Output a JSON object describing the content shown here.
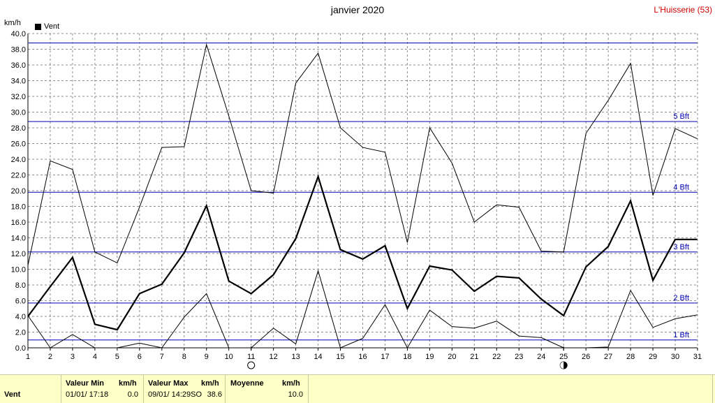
{
  "header": {
    "title": "janvier 2020",
    "station": "L'Huisserie (53)",
    "unit": "km/h",
    "legend_label": "Vent"
  },
  "chart_data": {
    "type": "line",
    "title": "janvier 2020",
    "ylabel": "km/h",
    "xlabel": "",
    "ylim": [
      0,
      40
    ],
    "y_ticks": [
      "0.0",
      "2.0",
      "4.0",
      "6.0",
      "8.0",
      "10.0",
      "12.0",
      "14.0",
      "16.0",
      "18.0",
      "20.0",
      "22.0",
      "24.0",
      "26.0",
      "28.0",
      "30.0",
      "32.0",
      "34.0",
      "36.0",
      "38.0",
      "40.0"
    ],
    "x": [
      1,
      2,
      3,
      4,
      5,
      6,
      7,
      8,
      9,
      10,
      11,
      12,
      13,
      14,
      15,
      16,
      17,
      18,
      19,
      20,
      21,
      22,
      23,
      24,
      25,
      26,
      27,
      28,
      29,
      30,
      31
    ],
    "grid": true,
    "legend": "top-left",
    "series": [
      {
        "name": "Vent",
        "color": "#000000",
        "values": [
          4.0,
          7.8,
          11.5,
          3.0,
          2.3,
          6.9,
          8.1,
          12.1,
          18.1,
          8.5,
          6.9,
          9.3,
          13.9,
          21.8,
          12.5,
          11.3,
          13.0,
          5.0,
          10.4,
          9.9,
          7.2,
          9.1,
          8.9,
          6.2,
          4.1,
          10.3,
          12.9,
          18.7,
          8.6,
          13.8,
          13.8
        ]
      },
      {
        "color": "#000000",
        "values": [
          10.5,
          23.8,
          22.7,
          12.2,
          10.8,
          17.9,
          25.5,
          25.6,
          38.6,
          29.5,
          20.0,
          19.7,
          33.7,
          37.5,
          28.0,
          25.5,
          24.9,
          13.4,
          28.0,
          23.5,
          16.0,
          18.2,
          17.9,
          12.3,
          12.2,
          27.3,
          31.5,
          36.2,
          19.4,
          27.9,
          26.6
        ]
      },
      {
        "color": "#000000",
        "values": [
          4.1,
          0.0,
          1.7,
          0.0,
          0.0,
          0.6,
          0.0,
          3.9,
          6.9,
          0.0,
          0.0,
          2.5,
          0.5,
          9.8,
          0.0,
          1.2,
          5.5,
          0.0,
          4.8,
          2.7,
          2.5,
          3.4,
          1.5,
          1.3,
          0.0,
          0.0,
          0.1,
          7.3,
          2.6,
          3.7,
          4.2
        ]
      }
    ],
    "beaufort_lines": [
      {
        "value": 1.0,
        "label": "1 Bft"
      },
      {
        "value": 5.7,
        "label": "2 Bft"
      },
      {
        "value": 12.2,
        "label": "3 Bft"
      },
      {
        "value": 19.8,
        "label": "4 Bft"
      },
      {
        "value": 28.8,
        "label": "5 Bft"
      },
      {
        "value": 38.8,
        "label": ""
      }
    ],
    "moon_phases": [
      {
        "day": 11,
        "phase": "full"
      },
      {
        "day": 25,
        "phase": "new"
      }
    ]
  },
  "footer": {
    "series_label": "Vent",
    "min_header": "Valeur Min",
    "min_unit": "km/h",
    "min_date": "01/01/  17:18",
    "min_value": "0.0",
    "max_header": "Valeur Max",
    "max_unit": "km/h",
    "max_date": "09/01/  14:29SO",
    "max_value": "38.6",
    "avg_header": "Moyenne",
    "avg_unit": "km/h",
    "avg_value": "10.0"
  },
  "colors": {
    "beaufort": "#0000b4",
    "grid": "#8c8c8c",
    "footer_bg": "#ffffc8",
    "station": "#d00000"
  }
}
